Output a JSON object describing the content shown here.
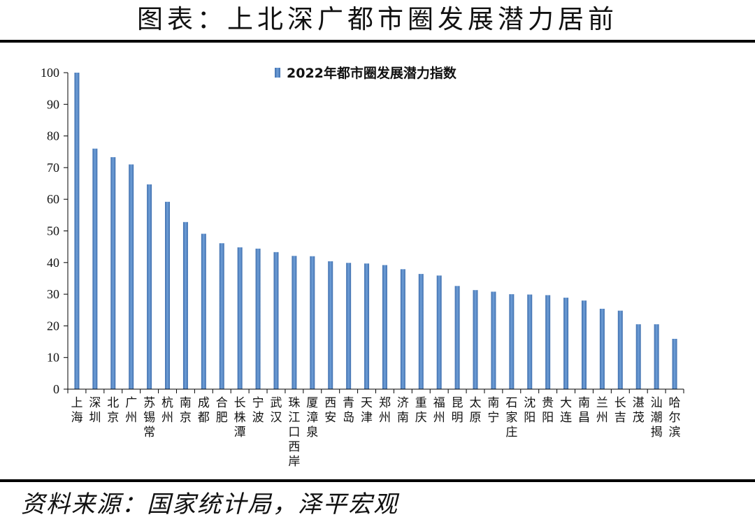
{
  "title": "图表：上北深广都市圈发展潜力居前",
  "source": "资料来源：国家统计局，泽平宏观",
  "colors": {
    "bar": "#6f9fd8",
    "bar_edge": "#3f6fae",
    "axis": "#000000"
  },
  "chart_data": {
    "type": "bar",
    "title": "",
    "xlabel": "",
    "ylabel": "",
    "ylim": [
      0,
      100
    ],
    "yticks": [
      0,
      10,
      20,
      30,
      40,
      50,
      60,
      70,
      80,
      90,
      100
    ],
    "grid": false,
    "legend_position": "top",
    "series": [
      {
        "name": "2022年都市圈发展潜力指数",
        "values": [
          100,
          76,
          73.3,
          71,
          64.7,
          59.2,
          52.8,
          49.1,
          46.1,
          44.8,
          44.4,
          43.3,
          42.1,
          42,
          40.4,
          39.9,
          39.7,
          39.2,
          37.9,
          36.4,
          35.9,
          32.6,
          31.3,
          30.8,
          30,
          29.9,
          29.7,
          28.9,
          28,
          25.4,
          24.8,
          20.5,
          20.5,
          15.9
        ]
      }
    ],
    "categories": [
      "上海",
      "深圳",
      "北京",
      "广州",
      "苏锡常",
      "杭州",
      "南京",
      "成都",
      "合肥",
      "长株潭",
      "宁波",
      "武汉",
      "珠江口西岸",
      "厦漳泉",
      "西安",
      "青岛",
      "天津",
      "郑州",
      "济南",
      "重庆",
      "福州",
      "昆明",
      "太原",
      "南宁",
      "石家庄",
      "沈阳",
      "贵阳",
      "大连",
      "南昌",
      "兰州",
      "长吉",
      "湛茂",
      "汕潮揭",
      "哈尔滨"
    ]
  }
}
